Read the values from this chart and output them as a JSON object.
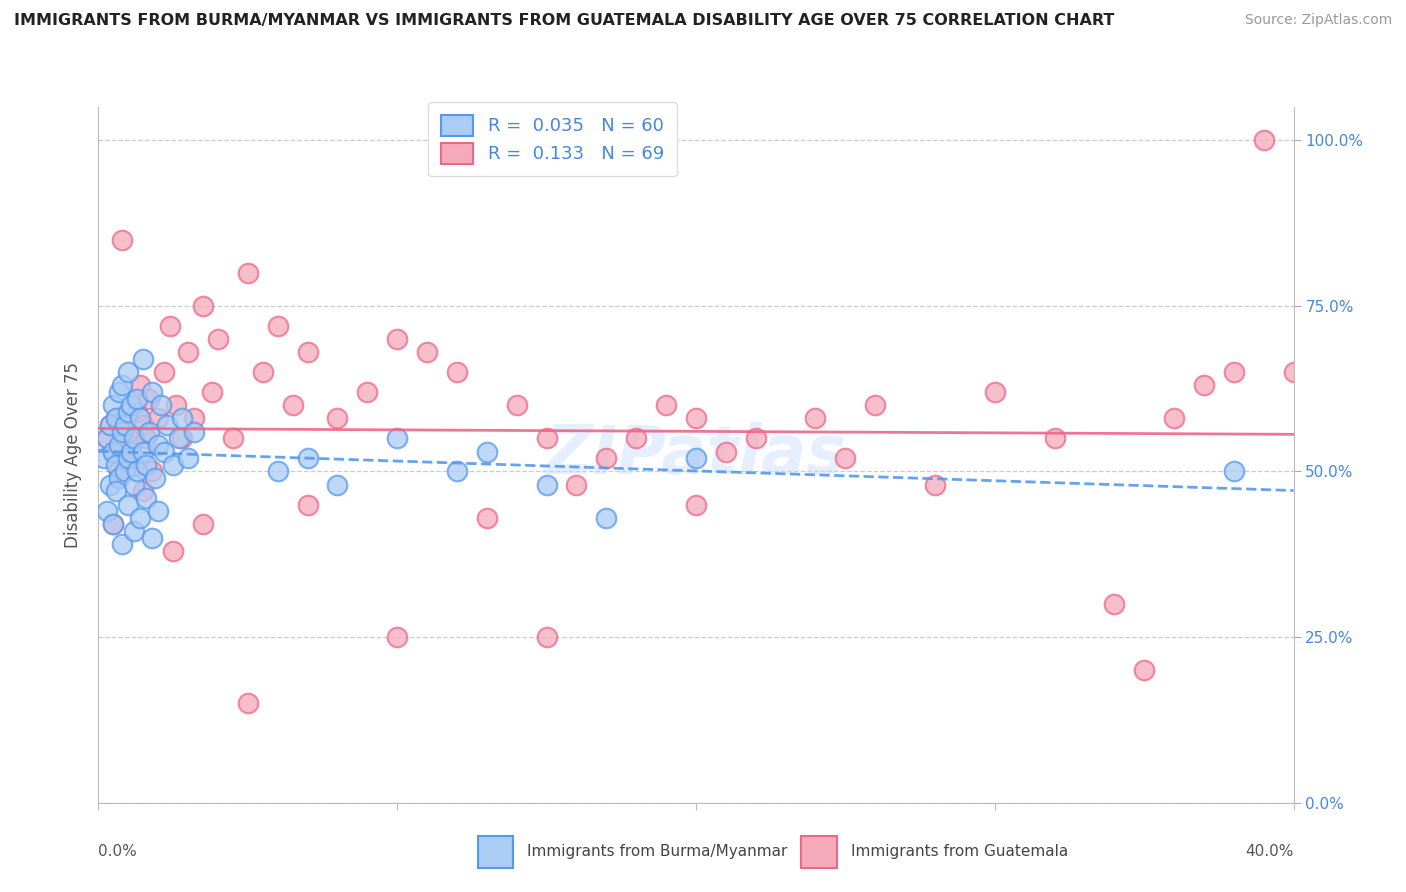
{
  "title": "IMMIGRANTS FROM BURMA/MYANMAR VS IMMIGRANTS FROM GUATEMALA DISABILITY AGE OVER 75 CORRELATION CHART",
  "source": "Source: ZipAtlas.com",
  "ylabel": "Disability Age Over 75",
  "ylabel_right_ticks": [
    "0.0%",
    "25.0%",
    "50.0%",
    "75.0%",
    "100.0%"
  ],
  "ylabel_right_vals": [
    0.0,
    0.25,
    0.5,
    0.75,
    1.0
  ],
  "legend_label1": "Immigrants from Burma/Myanmar",
  "legend_label2": "Immigrants from Guatemala",
  "R1": 0.035,
  "N1": 60,
  "R2": 0.133,
  "N2": 69,
  "color1": "#AACCF5",
  "color2": "#F5AABB",
  "line1_color": "#5599EE",
  "line2_color": "#EE6688",
  "watermark": "ZIPatlas",
  "xmin": 0.0,
  "xmax": 0.4,
  "ymin": 0.0,
  "ymax": 1.05,
  "blue_scatter_x": [
    0.002,
    0.003,
    0.004,
    0.004,
    0.005,
    0.005,
    0.006,
    0.006,
    0.007,
    0.007,
    0.007,
    0.008,
    0.008,
    0.009,
    0.009,
    0.01,
    0.01,
    0.01,
    0.011,
    0.011,
    0.012,
    0.012,
    0.013,
    0.013,
    0.014,
    0.015,
    0.015,
    0.016,
    0.017,
    0.018,
    0.019,
    0.02,
    0.021,
    0.022,
    0.023,
    0.025,
    0.027,
    0.028,
    0.03,
    0.032,
    0.003,
    0.005,
    0.006,
    0.008,
    0.01,
    0.012,
    0.014,
    0.016,
    0.018,
    0.02,
    0.06,
    0.07,
    0.08,
    0.1,
    0.12,
    0.13,
    0.15,
    0.17,
    0.2,
    0.38
  ],
  "blue_scatter_y": [
    0.52,
    0.55,
    0.57,
    0.48,
    0.53,
    0.6,
    0.51,
    0.58,
    0.54,
    0.62,
    0.49,
    0.56,
    0.63,
    0.5,
    0.57,
    0.52,
    0.59,
    0.65,
    0.53,
    0.6,
    0.48,
    0.55,
    0.61,
    0.5,
    0.58,
    0.53,
    0.67,
    0.51,
    0.56,
    0.62,
    0.49,
    0.54,
    0.6,
    0.53,
    0.57,
    0.51,
    0.55,
    0.58,
    0.52,
    0.56,
    0.44,
    0.42,
    0.47,
    0.39,
    0.45,
    0.41,
    0.43,
    0.46,
    0.4,
    0.44,
    0.5,
    0.52,
    0.48,
    0.55,
    0.5,
    0.53,
    0.48,
    0.43,
    0.52,
    0.5
  ],
  "pink_scatter_x": [
    0.003,
    0.004,
    0.005,
    0.006,
    0.007,
    0.008,
    0.009,
    0.01,
    0.011,
    0.012,
    0.013,
    0.014,
    0.015,
    0.016,
    0.017,
    0.018,
    0.02,
    0.022,
    0.024,
    0.026,
    0.028,
    0.03,
    0.032,
    0.035,
    0.038,
    0.04,
    0.045,
    0.05,
    0.055,
    0.06,
    0.065,
    0.07,
    0.08,
    0.09,
    0.1,
    0.11,
    0.12,
    0.13,
    0.14,
    0.15,
    0.16,
    0.17,
    0.18,
    0.19,
    0.2,
    0.21,
    0.22,
    0.24,
    0.25,
    0.26,
    0.28,
    0.3,
    0.32,
    0.34,
    0.35,
    0.36,
    0.37,
    0.38,
    0.39,
    0.4,
    0.005,
    0.015,
    0.025,
    0.035,
    0.05,
    0.07,
    0.1,
    0.15,
    0.2
  ],
  "pink_scatter_y": [
    0.55,
    0.57,
    0.53,
    0.58,
    0.5,
    0.85,
    0.52,
    0.56,
    0.54,
    0.51,
    0.59,
    0.63,
    0.57,
    0.55,
    0.61,
    0.5,
    0.58,
    0.65,
    0.72,
    0.6,
    0.55,
    0.68,
    0.58,
    0.75,
    0.62,
    0.7,
    0.55,
    0.8,
    0.65,
    0.72,
    0.6,
    0.68,
    0.58,
    0.62,
    0.7,
    0.68,
    0.65,
    0.43,
    0.6,
    0.55,
    0.48,
    0.52,
    0.55,
    0.6,
    0.45,
    0.53,
    0.55,
    0.58,
    0.52,
    0.6,
    0.48,
    0.62,
    0.55,
    0.3,
    0.2,
    0.58,
    0.63,
    0.65,
    1.0,
    0.65,
    0.42,
    0.47,
    0.38,
    0.42,
    0.15,
    0.45,
    0.25,
    0.25,
    0.58
  ]
}
